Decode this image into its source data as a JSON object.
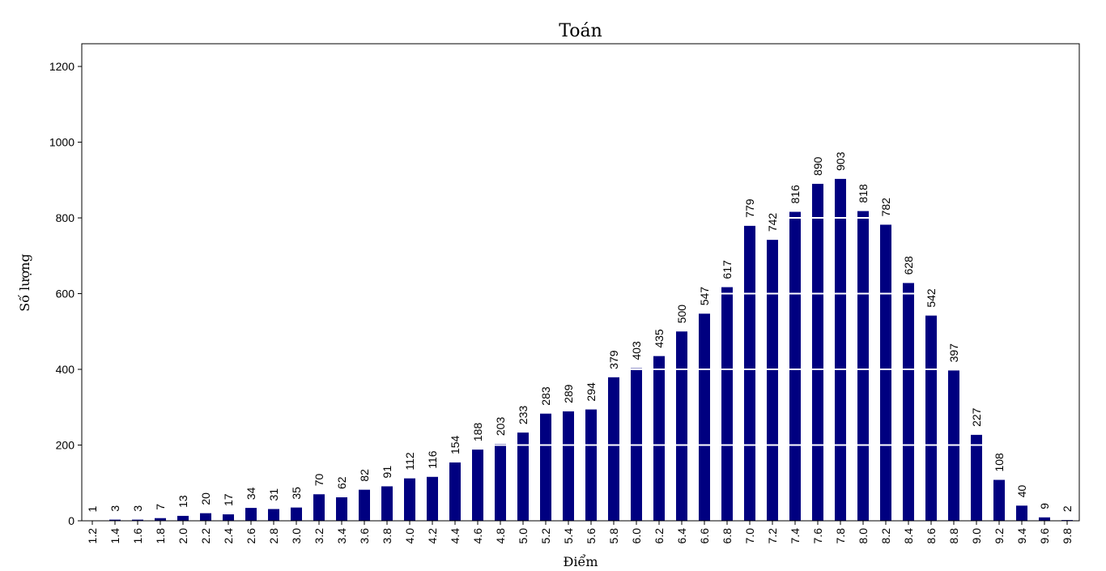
{
  "colors": {
    "bar": "#000080",
    "grid": "#ffffff",
    "axis": "#000000",
    "background": "#ffffff"
  },
  "chart_data": {
    "type": "bar",
    "title": "Toán",
    "xlabel": "Điểm",
    "ylabel": "Số lượng",
    "ylim": [
      0,
      1260
    ],
    "yticks": [
      0,
      200,
      400,
      600,
      800,
      1000,
      1200
    ],
    "grid": true,
    "categories": [
      "1.2",
      "1.4",
      "1.6",
      "1.8",
      "2.0",
      "2.2",
      "2.4",
      "2.6",
      "2.8",
      "3.0",
      "3.2",
      "3.4",
      "3.6",
      "3.8",
      "4.0",
      "4.2",
      "4.4",
      "4.6",
      "4.8",
      "5.0",
      "5.2",
      "5.4",
      "5.6",
      "5.8",
      "6.0",
      "6.2",
      "6.4",
      "6.6",
      "6.8",
      "7.0",
      "7.2",
      "7.4",
      "7.6",
      "7.8",
      "8.0",
      "8.2",
      "8.4",
      "8.6",
      "8.8",
      "9.0",
      "9.2",
      "9.4",
      "9.6",
      "9.8"
    ],
    "values": [
      1,
      3,
      3,
      7,
      13,
      20,
      17,
      34,
      31,
      35,
      70,
      62,
      82,
      91,
      112,
      116,
      154,
      188,
      203,
      233,
      283,
      289,
      294,
      379,
      403,
      435,
      500,
      547,
      617,
      779,
      742,
      816,
      890,
      903,
      818,
      782,
      628,
      542,
      397,
      227,
      108,
      40,
      9,
      2
    ]
  }
}
